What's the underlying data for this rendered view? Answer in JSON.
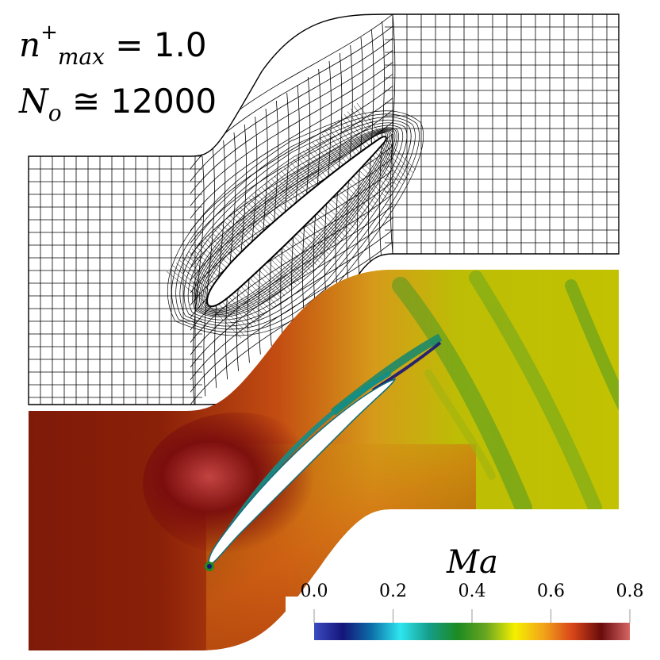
{
  "figure": {
    "label_max_normal_symbol": "n",
    "label_max_normal_superscript": "+",
    "label_max_normal_subscript": "max",
    "label_max_normal_value": "= 1.0",
    "label_cells_symbol": "N",
    "label_cells_subscript": "o",
    "label_cells_value": "≅ 12000"
  },
  "colorbar": {
    "title": "Ma",
    "ticks": [
      "0.0",
      "0.2",
      "0.4",
      "0.6",
      "0.8"
    ],
    "range": [
      0.0,
      0.8
    ],
    "colormap": [
      "#3b4cc0",
      "#14147a",
      "#0d6fa8",
      "#2ee6ef",
      "#159d8a",
      "#1c8a21",
      "#6aa620",
      "#f5f000",
      "#f2a31a",
      "#d8451a",
      "#6a0b0b",
      "#d66565"
    ]
  },
  "colors": {
    "mesh_line": "#000000",
    "field_low": "#c4c400",
    "field_mid": "#b29a1f",
    "field_high": "#8a1d0a",
    "field_peak": "#5f0707",
    "wake_green": "#3f9a2a"
  }
}
